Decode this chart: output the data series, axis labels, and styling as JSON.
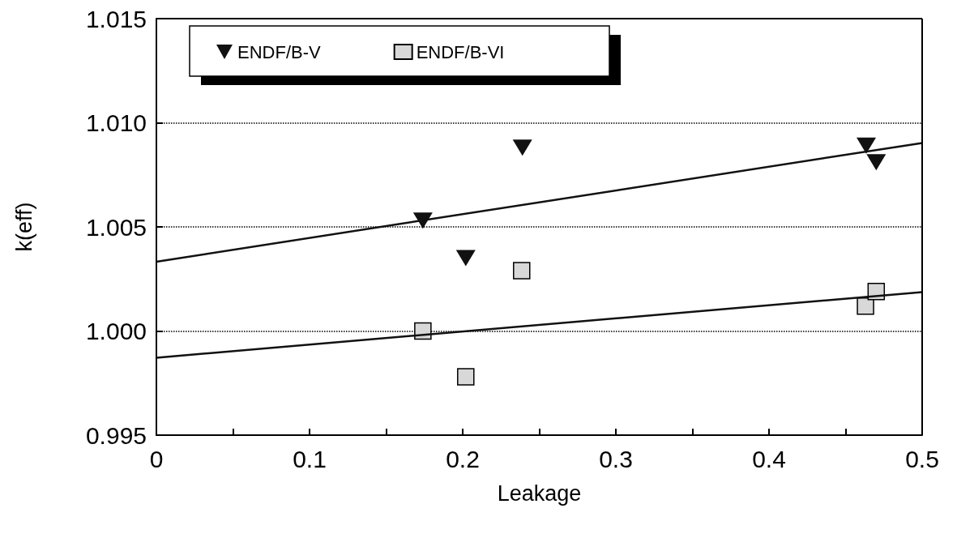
{
  "chart_data": {
    "type": "scatter",
    "xlabel": "Leakage",
    "ylabel": "k(eff)",
    "xlim": [
      0,
      0.5
    ],
    "xticks": [
      0,
      0.1,
      0.2,
      0.3,
      0.4,
      0.5
    ],
    "ylim": [
      0.995,
      1.015
    ],
    "yticks": [
      {
        "value": 0.995,
        "label": "0.995"
      },
      {
        "value": 1.0,
        "label": "1.000"
      },
      {
        "value": 1.005,
        "label": "1.005"
      },
      {
        "value": 1.01,
        "label": "1.010"
      },
      {
        "value": 1.015,
        "label": "1.015"
      }
    ],
    "grid": "y",
    "legend": "top left",
    "series": [
      {
        "name": "ENDF/B-V",
        "color": "#111111",
        "marker": "triangle",
        "x": [
          0.174,
          0.202,
          0.239,
          0.4635,
          0.47
        ],
        "values": [
          1.0053,
          1.0035,
          1.0088,
          1.0089,
          1.0081
        ]
      },
      {
        "name": "ENDF/B-VI",
        "color": "#d8d8d8",
        "marker": "square",
        "x": [
          0.174,
          0.202,
          0.2385,
          0.463,
          0.47
        ],
        "values": [
          1.0,
          0.9978,
          1.0029,
          1.0012,
          1.0019
        ]
      },
      {
        "type": "line",
        "color": "#111111",
        "marker": "none",
        "x": [
          0,
          0.5
        ],
        "values": [
          1.00333,
          1.00903
        ]
      },
      {
        "type": "line",
        "color": "#111111",
        "marker": "none",
        "x": [
          0,
          0.5
        ],
        "values": [
          0.99872,
          1.00187
        ]
      }
    ]
  }
}
